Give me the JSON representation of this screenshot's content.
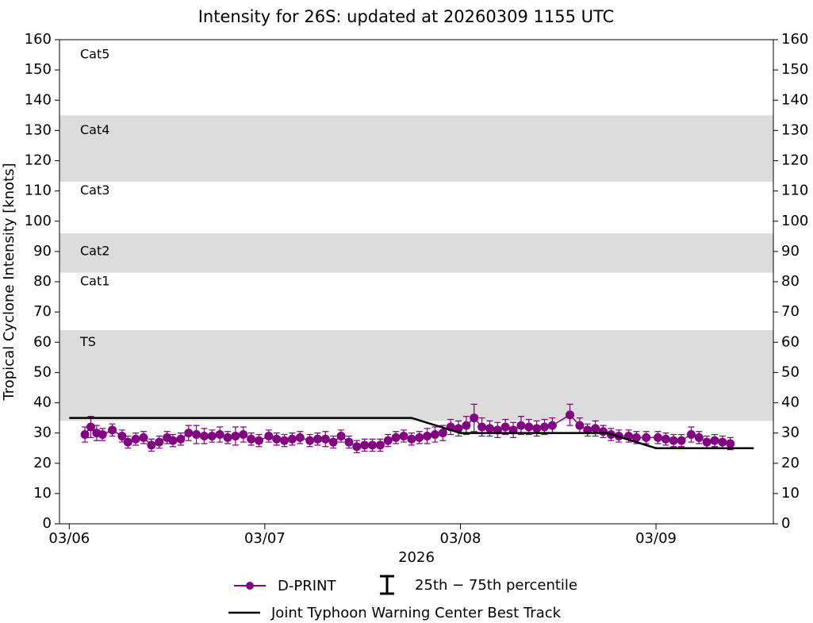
{
  "chart_data": {
    "type": "errorbar-line",
    "title": "Intensity for 26S: updated at 20260309 1155 UTC",
    "ylabel": "Tropical Cyclone Intensity [knots]",
    "xlabel": "2026",
    "ylim": [
      0,
      160
    ],
    "yticks": [
      0,
      10,
      20,
      30,
      40,
      50,
      60,
      70,
      80,
      90,
      100,
      110,
      120,
      130,
      140,
      150,
      160
    ],
    "y2lim": [
      0,
      160
    ],
    "xlim": [
      -0.05,
      3.6
    ],
    "xticks": [
      {
        "value": 0,
        "label": "03/06"
      },
      {
        "value": 1,
        "label": "03/07"
      },
      {
        "value": 2,
        "label": "03/08"
      },
      {
        "value": 3,
        "label": "03/09"
      }
    ],
    "bands": [
      {
        "from": 34,
        "to": 64
      },
      {
        "from": 83,
        "to": 96
      },
      {
        "from": 113,
        "to": 135
      }
    ],
    "band_color": "#dcdcdc",
    "category_labels": [
      {
        "value": 155,
        "label": "Cat5"
      },
      {
        "value": 130,
        "label": "Cat4"
      },
      {
        "value": 110,
        "label": "Cat3"
      },
      {
        "value": 90,
        "label": "Cat2"
      },
      {
        "value": 80,
        "label": "Cat1"
      },
      {
        "value": 60,
        "label": "TS"
      }
    ],
    "errorbar_label": "25th − 75th percentile",
    "series": [
      {
        "name": "D-PRINT",
        "color": "#800080",
        "x": [
          0.08,
          0.11,
          0.14,
          0.17,
          0.22,
          0.27,
          0.3,
          0.34,
          0.38,
          0.42,
          0.46,
          0.5,
          0.53,
          0.57,
          0.61,
          0.65,
          0.69,
          0.73,
          0.77,
          0.81,
          0.85,
          0.89,
          0.93,
          0.97,
          1.02,
          1.06,
          1.1,
          1.14,
          1.18,
          1.23,
          1.27,
          1.31,
          1.35,
          1.39,
          1.43,
          1.47,
          1.51,
          1.55,
          1.59,
          1.63,
          1.67,
          1.71,
          1.75,
          1.79,
          1.83,
          1.87,
          1.91,
          1.95,
          1.99,
          2.03,
          2.07,
          2.11,
          2.15,
          2.19,
          2.23,
          2.27,
          2.31,
          2.35,
          2.39,
          2.43,
          2.47,
          2.56,
          2.61,
          2.65,
          2.69,
          2.73,
          2.77,
          2.81,
          2.86,
          2.9,
          2.95,
          3.01,
          3.05,
          3.09,
          3.13,
          3.18,
          3.22,
          3.26,
          3.3,
          3.34,
          3.38
        ],
        "values": [
          29.5,
          32,
          30,
          29.5,
          31,
          29,
          27,
          28,
          28.5,
          26,
          27,
          28.5,
          27.5,
          28,
          30,
          29.5,
          29,
          29,
          29.5,
          28.5,
          29,
          29.5,
          28,
          27.5,
          29,
          28,
          27.5,
          28,
          28.5,
          27.5,
          28,
          28,
          27,
          29,
          27,
          25.5,
          26,
          26,
          26,
          27.5,
          28.5,
          29,
          28,
          28.5,
          29,
          29.5,
          30,
          32,
          31.5,
          32.5,
          35,
          32,
          31.5,
          31,
          32,
          31,
          32.5,
          32,
          31.5,
          32,
          32.5,
          36,
          32.5,
          31,
          31.5,
          30.5,
          29.5,
          29,
          29,
          28.5,
          28.5,
          28.5,
          28,
          27.5,
          27.5,
          29.5,
          28.5,
          27,
          27.5,
          27,
          26.5
        ],
        "errors": [
          2.5,
          3.5,
          2.5,
          2,
          2,
          2,
          2,
          2,
          2,
          2,
          2,
          2,
          2,
          2,
          2.5,
          3,
          2.5,
          2,
          2.5,
          2,
          3,
          2.5,
          2,
          2,
          2,
          2,
          2,
          2,
          2,
          2,
          2,
          2.5,
          2,
          2,
          2,
          2,
          2,
          2,
          2,
          2,
          2,
          2,
          2,
          2,
          2.5,
          2.5,
          2.5,
          2.5,
          2.5,
          3,
          4.5,
          3,
          2.5,
          2.5,
          2.5,
          2.5,
          3,
          2.5,
          2.5,
          2.5,
          2.5,
          3.5,
          2.5,
          2,
          2.5,
          2,
          2,
          2,
          2,
          2,
          2,
          2,
          2,
          2,
          2,
          2.5,
          2,
          2,
          2,
          2,
          2
        ]
      },
      {
        "name": "Joint Typhoon Warning Center Best Track",
        "color": "#000000",
        "x": [
          0,
          1.75,
          2.0,
          2.75,
          3.0,
          3.5
        ],
        "values": [
          35,
          35,
          30,
          30,
          25,
          25
        ]
      }
    ]
  }
}
